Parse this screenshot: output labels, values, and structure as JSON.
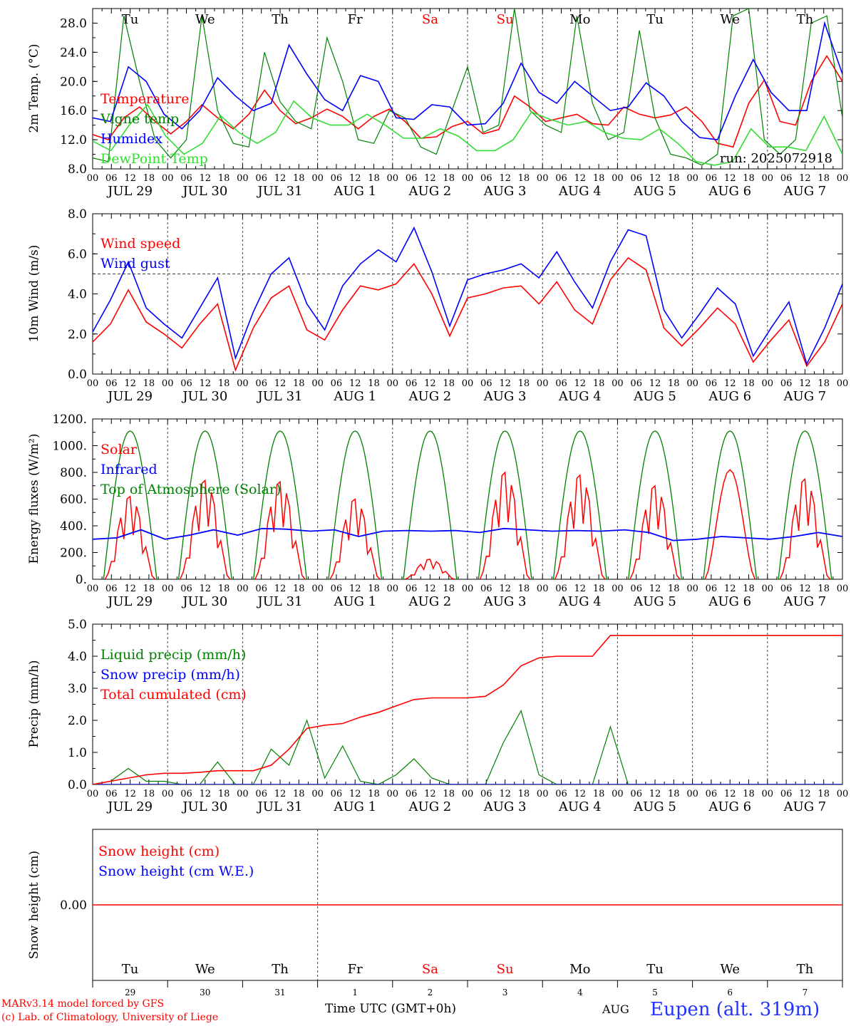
{
  "x_axis": {
    "hour_ticks": [
      "00",
      "06",
      "12",
      "18"
    ],
    "dates": [
      "JUL 29",
      "JUL 30",
      "JUL 31",
      "AUG  1",
      "AUG  2",
      "AUG  3",
      "AUG  4",
      "AUG  5",
      "AUG  6",
      "AUG  7"
    ],
    "weekdays": [
      "Tu",
      "We",
      "Th",
      "Fr",
      "Sa",
      "Su",
      "Mo",
      "Tu",
      "We",
      "Th"
    ],
    "weekend_flags": [
      false,
      false,
      false,
      false,
      true,
      true,
      false,
      false,
      false,
      false
    ],
    "day_numbers": [
      "29",
      "30",
      "31",
      "1",
      "2",
      "3",
      "4",
      "5",
      "6",
      "7"
    ],
    "month_label": "AUG"
  },
  "colors": {
    "red": "#ff0000",
    "green": "#008000",
    "blue": "#0000ff",
    "lime": "#33dd33",
    "grid": "#333333"
  },
  "run_label": "run: 2025072918",
  "footer": {
    "model": "MARv3.14 model forced by GFS",
    "credit": "(c) Lab. of Climatology, University of Liege",
    "time_label": "Time UTC (GMT+0h)",
    "station": "Eupen (alt. 319m)"
  },
  "chart_data": [
    {
      "id": "temp",
      "type": "line",
      "ylabel": "2m Temp. (°C)",
      "ylim": [
        8,
        30
      ],
      "yticks": [
        "8.0",
        "12.0",
        "16.0",
        "20.0",
        "24.0",
        "28.0"
      ],
      "ytick_values": [
        8,
        12,
        16,
        20,
        24,
        28
      ],
      "x_start_hours": 0,
      "x_step_hours": 6,
      "series": [
        {
          "name": "Temperature",
          "color": "red",
          "values": [
            12.7,
            12,
            15,
            16.5,
            14.5,
            12.8,
            14.5,
            16.8,
            15,
            13.5,
            15.5,
            18.8,
            16,
            14.2,
            15,
            16.2,
            15.2,
            13.5,
            15.2,
            16.2,
            14.5,
            12.2,
            12.4,
            13.8,
            14.5,
            12.8,
            13.4,
            18,
            16.5,
            14.5,
            15,
            15.5,
            14.2,
            14,
            16.5,
            15.5,
            15,
            15.4,
            16.5,
            14.5,
            11.5,
            11,
            17,
            20.2,
            14.5,
            14,
            20,
            23.5,
            20
          ]
        },
        {
          "name": "Vigne temp",
          "color": "green",
          "values": [
            9.5,
            9,
            29,
            20,
            12,
            9.5,
            12,
            29,
            16,
            11.5,
            11,
            24,
            17.2,
            14.5,
            13.5,
            26,
            20,
            12,
            11.5,
            16,
            15,
            11,
            10,
            16,
            22,
            13,
            14,
            30,
            16,
            14,
            13,
            29,
            17,
            12,
            13,
            27,
            15,
            10,
            9.5,
            8.5,
            10,
            29,
            30,
            12,
            10,
            12,
            28,
            29,
            15
          ]
        },
        {
          "name": "Humidex",
          "color": "blue",
          "values": [
            15,
            14.5,
            22,
            20,
            15.5,
            13.5,
            16,
            20.5,
            18,
            16,
            17,
            25,
            21,
            17.5,
            16,
            20.8,
            20,
            15,
            14.8,
            16.8,
            16.5,
            14,
            14.2,
            17,
            22.5,
            18.5,
            17,
            20,
            18,
            16,
            16.5,
            19.8,
            18,
            14.5,
            12.3,
            12,
            18,
            23,
            18.5,
            16,
            16,
            28,
            21
          ]
        },
        {
          "name": "DewPoint Temp",
          "color": "lime",
          "values": [
            11.8,
            10.5,
            14,
            16.8,
            12.5,
            10,
            11.5,
            15.3,
            13,
            11.5,
            13,
            17.3,
            15,
            14,
            14,
            15.5,
            14,
            12.2,
            12.2,
            13.5,
            12.5,
            10.5,
            10.5,
            12,
            15.8,
            14.8,
            14,
            14.5,
            13,
            12.2,
            12,
            13.5,
            11.5,
            9,
            8.5,
            9,
            13.5,
            11,
            11,
            10.5,
            15.2,
            10
          ]
        }
      ]
    },
    {
      "id": "wind",
      "type": "line",
      "ylabel": "10m Wind (m/s)",
      "ylim": [
        0,
        8
      ],
      "yticks": [
        "0.0",
        "2.0",
        "4.0",
        "6.0",
        "8.0"
      ],
      "ytick_values": [
        0,
        2,
        4,
        6,
        8
      ],
      "ref_line": 5,
      "x_start_hours": 0,
      "x_step_hours": 6,
      "series": [
        {
          "name": "Wind speed",
          "color": "red",
          "values": [
            1.6,
            2.5,
            4.2,
            2.6,
            2,
            1.3,
            2.5,
            3.5,
            0.2,
            2.3,
            3.8,
            4.4,
            2.2,
            1.7,
            3.2,
            4.4,
            4.2,
            4.5,
            5.5,
            4,
            1.9,
            3.8,
            4,
            4.3,
            4.4,
            3.5,
            4.6,
            3.2,
            2.5,
            4.7,
            5.8,
            5.2,
            2.3,
            1.4,
            2.3,
            3.3,
            2.5,
            0.6,
            1.7,
            2.7,
            0.4,
            1.6,
            3.5
          ]
        },
        {
          "name": "Wind gust",
          "color": "blue",
          "values": [
            2.1,
            3.7,
            5.6,
            3.3,
            2.5,
            1.8,
            3.3,
            4.8,
            0.8,
            3.1,
            5,
            5.8,
            3.5,
            2.2,
            4.4,
            5.5,
            6.2,
            5.6,
            7.3,
            5.1,
            2.4,
            4.7,
            5,
            5.2,
            5.5,
            4.8,
            6.1,
            4.6,
            3.3,
            5.6,
            7.2,
            6.9,
            3.2,
            1.8,
            3,
            4.3,
            3.5,
            0.9,
            2.3,
            3.6,
            0.5,
            2.3,
            4.5
          ]
        }
      ]
    },
    {
      "id": "energy",
      "type": "line",
      "ylabel": "Energy fluxes (W/m²)",
      "ylim": [
        0,
        1200
      ],
      "yticks": [
        "0.",
        "200.",
        "400.",
        "600.",
        "800.",
        "1000.",
        "1200."
      ],
      "ytick_values": [
        0,
        200,
        400,
        600,
        800,
        1000,
        1200
      ],
      "toa_peak": 1110,
      "solar_peaks": [
        620,
        740,
        730,
        600,
        150,
        800,
        780,
        700,
        820,
        750
      ],
      "infrared_values": [
        300,
        310,
        370,
        300,
        330,
        370,
        330,
        380,
        375,
        360,
        370,
        320,
        360,
        365,
        360,
        365,
        350,
        380,
        370,
        360,
        365,
        360,
        370,
        350,
        290,
        300,
        320,
        310,
        300,
        320,
        350,
        320
      ],
      "series": [
        {
          "name": "Solar",
          "color": "red"
        },
        {
          "name": "Infrared",
          "color": "blue"
        },
        {
          "name": "Top of Atmosphere (Solar)",
          "color": "green"
        }
      ]
    },
    {
      "id": "precip",
      "type": "line",
      "ylabel": "Precip (mm/h)",
      "ylim": [
        0,
        5
      ],
      "yticks": [
        "0.0",
        "1.0",
        "2.0",
        "3.0",
        "4.0",
        "5.0"
      ],
      "ytick_values": [
        0,
        1,
        2,
        3,
        4,
        5
      ],
      "x_start_hours": 0,
      "x_step_hours": 6,
      "series": [
        {
          "name": "Liquid precip (mm/h)",
          "color": "green",
          "values": [
            0,
            0.1,
            0.5,
            0.1,
            0.1,
            0,
            0,
            0.7,
            0,
            0,
            1.1,
            0.6,
            2,
            0.2,
            1.2,
            0.1,
            0,
            0.3,
            0.8,
            0.2,
            0,
            0,
            0,
            1.3,
            2.3,
            0.3,
            0,
            0,
            0,
            1.8,
            0,
            0,
            0,
            0,
            0,
            0,
            0,
            0,
            0,
            0,
            0,
            0,
            0
          ]
        },
        {
          "name": "Snow precip (mm/h)",
          "color": "blue",
          "values": [
            0,
            0,
            0,
            0,
            0,
            0,
            0,
            0,
            0,
            0,
            0,
            0,
            0,
            0,
            0,
            0,
            0,
            0,
            0,
            0,
            0,
            0,
            0,
            0,
            0,
            0,
            0,
            0,
            0,
            0,
            0,
            0,
            0,
            0,
            0,
            0,
            0,
            0,
            0,
            0,
            0,
            0,
            0
          ]
        },
        {
          "name": "Total cumulated (cm)",
          "color": "red",
          "values": [
            0,
            0.1,
            0.2,
            0.3,
            0.35,
            0.35,
            0.38,
            0.43,
            0.43,
            0.43,
            0.6,
            1.1,
            1.75,
            1.85,
            1.9,
            2.1,
            2.25,
            2.45,
            2.65,
            2.7,
            2.7,
            2.7,
            2.75,
            3.1,
            3.7,
            3.95,
            4,
            4,
            4,
            4.65,
            4.65,
            4.65,
            4.65,
            4.65,
            4.65,
            4.65,
            4.65,
            4.65,
            4.65,
            4.65,
            4.65,
            4.65,
            4.65
          ]
        }
      ]
    },
    {
      "id": "snow",
      "type": "line",
      "ylabel": "Snow height (cm)",
      "ylim": [
        -1,
        1
      ],
      "yticks": [
        "0.00"
      ],
      "ytick_values": [
        0
      ],
      "series": [
        {
          "name": "Snow height (cm)",
          "color": "red",
          "values": [
            0,
            0
          ]
        },
        {
          "name": "Snow height (cm W.E.)",
          "color": "blue",
          "values": [
            0,
            0
          ]
        }
      ]
    }
  ]
}
